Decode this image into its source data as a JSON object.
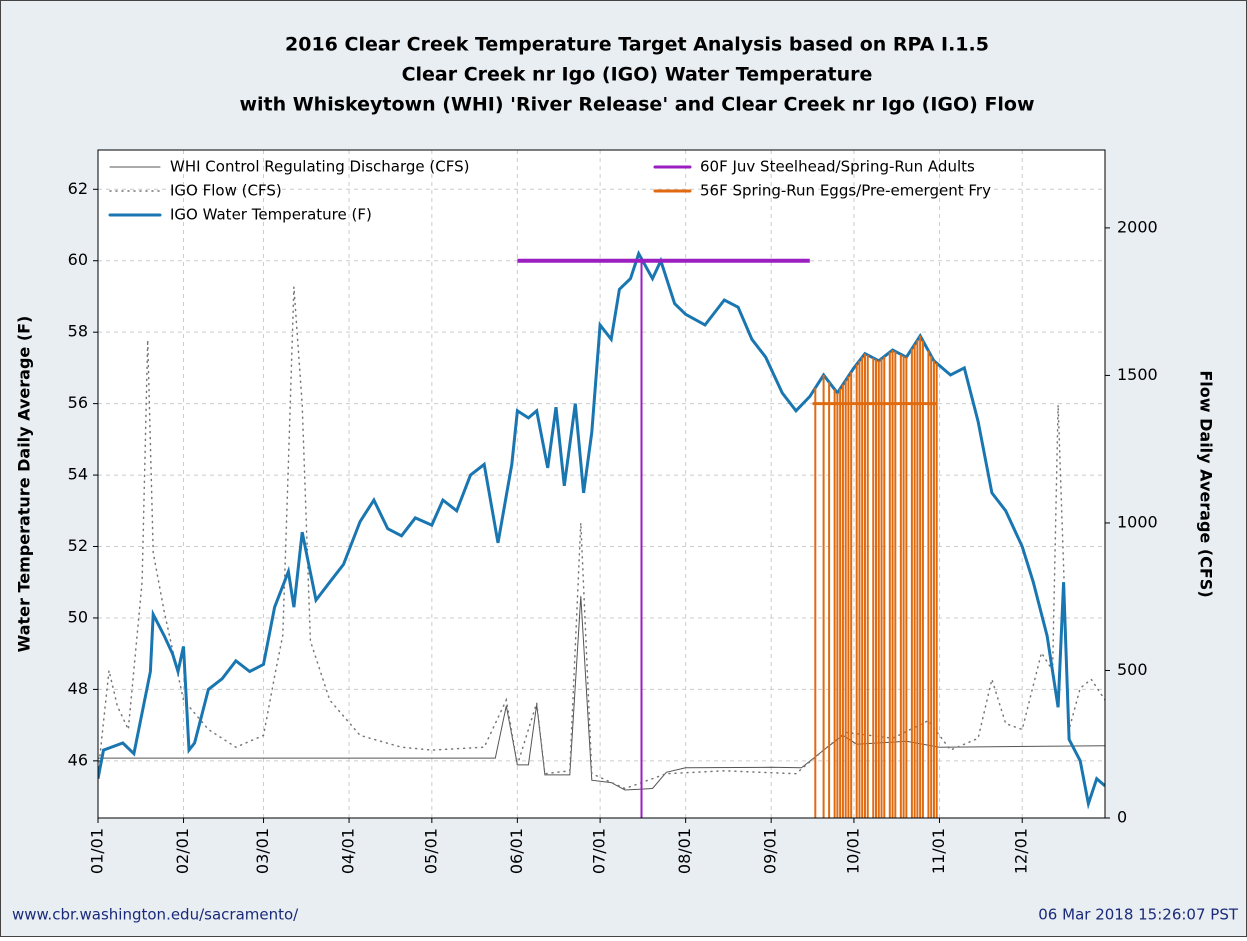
{
  "chart_data": {
    "type": "line",
    "title": [
      "2016 Clear Creek Temperature Target Analysis based on RPA I.1.5",
      "Clear Creek nr Igo (IGO) Water Temperature",
      "with Whiskeytown (WHI) 'River Release' and Clear Creek nr Igo (IGO) Flow"
    ],
    "y_label": "Water Temperature Daily Average (F)",
    "y2_label": "Flow Daily Average (CFS)",
    "footer_left": "www.cbr.washington.edu/sacramento/",
    "footer_right": "06 Mar 2018 15:26:07 PST",
    "xlim": [
      "01/01",
      "12/31"
    ],
    "xticks": [
      "01/01",
      "02/01",
      "03/01",
      "04/01",
      "05/01",
      "06/01",
      "07/01",
      "08/01",
      "09/01",
      "10/01",
      "11/01",
      "12/01"
    ],
    "ylim": [
      44.4,
      63.1
    ],
    "yticks": [
      46,
      48,
      50,
      52,
      54,
      56,
      58,
      60,
      62
    ],
    "y2lim": [
      0,
      2264
    ],
    "y2ticks": [
      0,
      500,
      1000,
      1500,
      2000
    ],
    "grid": true,
    "series": [
      {
        "name": "WHI Control Regulating Discharge (CFS)",
        "color": "#555555",
        "style": "solid",
        "width": 1,
        "axis": "y2",
        "x": [
          "01/01",
          "05/24",
          "05/28",
          "06/01",
          "06/05",
          "06/08",
          "06/11",
          "06/20",
          "06/24",
          "06/28",
          "07/05",
          "07/10",
          "07/20",
          "07/25",
          "08/01",
          "09/01",
          "09/12",
          "09/20",
          "09/27",
          "10/02",
          "10/20",
          "11/01",
          "12/31"
        ],
        "values": [
          203,
          203,
          380,
          180,
          180,
          385,
          146,
          146,
          752,
          128,
          120,
          95,
          100,
          155,
          170,
          172,
          170,
          230,
          280,
          250,
          260,
          240,
          245
        ]
      },
      {
        "name": "IGO Flow (CFS)",
        "color": "#777777",
        "style": "dotted",
        "width": 1.5,
        "axis": "y2",
        "x": [
          "01/01",
          "01/05",
          "01/08",
          "01/12",
          "01/17",
          "01/19",
          "01/21",
          "01/25",
          "02/01",
          "02/10",
          "02/20",
          "03/01",
          "03/05",
          "03/08",
          "03/10",
          "03/12",
          "03/15",
          "03/18",
          "03/25",
          "04/05",
          "04/20",
          "05/01",
          "05/20",
          "05/28",
          "06/01",
          "06/08",
          "06/11",
          "06/20",
          "06/24",
          "06/28",
          "07/10",
          "07/25",
          "08/15",
          "09/10",
          "09/20",
          "09/28",
          "10/15",
          "10/28",
          "11/05",
          "11/15",
          "11/20",
          "11/25",
          "12/01",
          "12/08",
          "12/12",
          "12/14",
          "12/18",
          "12/22",
          "12/26",
          "12/31"
        ],
        "values": [
          150,
          500,
          380,
          300,
          800,
          1620,
          900,
          700,
          400,
          300,
          240,
          280,
          480,
          620,
          1200,
          1800,
          1400,
          600,
          400,
          280,
          240,
          230,
          240,
          400,
          180,
          390,
          150,
          160,
          1000,
          150,
          100,
          150,
          160,
          150,
          230,
          290,
          270,
          330,
          230,
          270,
          470,
          320,
          300,
          560,
          500,
          1400,
          300,
          440,
          470,
          400
        ]
      },
      {
        "name": "IGO Water Temperature (F)",
        "color": "#1a76b0",
        "style": "solid",
        "width": 3,
        "axis": "y",
        "x": [
          "01/01",
          "01/03",
          "01/10",
          "01/14",
          "01/20",
          "01/21",
          "01/25",
          "01/28",
          "01/30",
          "02/01",
          "02/03",
          "02/05",
          "02/10",
          "02/15",
          "02/20",
          "02/25",
          "03/01",
          "03/05",
          "03/10",
          "03/12",
          "03/15",
          "03/20",
          "03/25",
          "03/30",
          "04/05",
          "04/10",
          "04/15",
          "04/20",
          "04/25",
          "05/01",
          "05/05",
          "05/10",
          "05/15",
          "05/20",
          "05/25",
          "05/30",
          "06/01",
          "06/05",
          "06/08",
          "06/12",
          "06/15",
          "06/18",
          "06/22",
          "06/25",
          "06/28",
          "07/01",
          "07/05",
          "07/08",
          "07/12",
          "07/15",
          "07/20",
          "07/23",
          "07/28",
          "08/01",
          "08/08",
          "08/15",
          "08/20",
          "08/25",
          "08/30",
          "09/05",
          "09/10",
          "09/15",
          "09/20",
          "09/25",
          "10/01",
          "10/05",
          "10/10",
          "10/15",
          "10/20",
          "10/25",
          "10/30",
          "11/05",
          "11/10",
          "11/15",
          "11/20",
          "11/25",
          "12/01",
          "12/05",
          "12/10",
          "12/14",
          "12/16",
          "12/18",
          "12/22",
          "12/25",
          "12/28",
          "12/31"
        ],
        "values": [
          45.5,
          46.3,
          46.5,
          46.2,
          48.5,
          50.1,
          49.5,
          49,
          48.5,
          49.2,
          46.3,
          46.5,
          48,
          48.3,
          48.8,
          48.5,
          48.7,
          50.3,
          51.3,
          50.3,
          52.4,
          50.5,
          51,
          51.5,
          52.7,
          53.3,
          52.5,
          52.3,
          52.8,
          52.6,
          53.3,
          53,
          54,
          54.3,
          52.1,
          54.3,
          55.8,
          55.6,
          55.8,
          54.2,
          55.9,
          53.7,
          56,
          53.5,
          55.2,
          58.2,
          57.8,
          59.2,
          59.5,
          60.2,
          59.5,
          60,
          58.8,
          58.5,
          58.2,
          58.9,
          58.7,
          57.8,
          57.3,
          56.3,
          55.8,
          56.2,
          56.8,
          56.3,
          57,
          57.4,
          57.2,
          57.5,
          57.3,
          57.9,
          57.2,
          56.8,
          57,
          55.5,
          53.5,
          53,
          52,
          51,
          49.5,
          47.5,
          51,
          46.6,
          46,
          44.8,
          45.5,
          45.3
        ]
      },
      {
        "name": "60F Juv Steelhead/Spring-Run Adults",
        "color": "#9b1fc0",
        "style": "solid",
        "width": 4,
        "axis": "y",
        "x": [
          "06/01",
          "09/15"
        ],
        "values": [
          60,
          60
        ],
        "exceedances": [
          "07/16"
        ]
      },
      {
        "name": "56F Spring-Run Eggs/Pre-emergent Fry",
        "color": "#e06a10",
        "style": "solid",
        "width": 3,
        "axis": "y",
        "x": [
          "09/16",
          "10/31"
        ],
        "values": [
          56,
          56
        ],
        "exceedances": [
          "09/17",
          "09/20",
          "09/22",
          "09/24",
          "09/25",
          "09/26",
          "09/27",
          "09/28",
          "09/29",
          "09/30",
          "10/02",
          "10/03",
          "10/04",
          "10/05",
          "10/06",
          "10/08",
          "10/09",
          "10/10",
          "10/11",
          "10/12",
          "10/14",
          "10/15",
          "10/16",
          "10/18",
          "10/19",
          "10/20",
          "10/22",
          "10/23",
          "10/24",
          "10/25",
          "10/26",
          "10/28",
          "10/29",
          "10/30",
          "10/31"
        ]
      }
    ]
  }
}
